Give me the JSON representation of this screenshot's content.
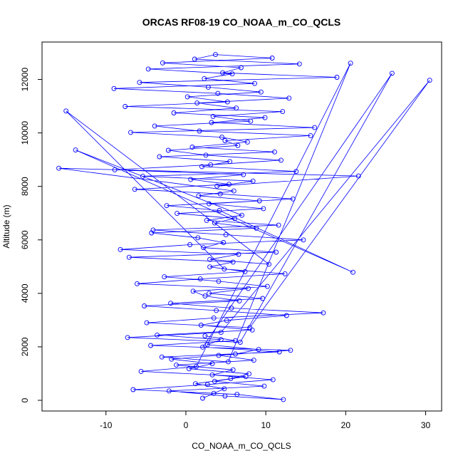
{
  "chart_data": {
    "type": "scatter",
    "title": "ORCAS RF08-19 CO_NOAA_m_CO_QCLS",
    "xlabel": "CO_NOAA_m_CO_QCLS",
    "ylabel": "Altitude (m)",
    "xlim": [
      -18,
      32
    ],
    "ylim": [
      -400,
      13400
    ],
    "xticks": [
      -10,
      0,
      10,
      20,
      30
    ],
    "yticks": [
      0,
      2000,
      4000,
      6000,
      8000,
      10000,
      12000
    ],
    "grid": false,
    "legend": "none",
    "connect_points": true,
    "point_color": "#0000ff",
    "series": [
      {
        "x": [
          2.1,
          3.5,
          4.8,
          1.2,
          5.6,
          7.9,
          0.4,
          3.3,
          -1.8,
          6.2,
          9.1,
          2.7,
          4.4,
          -3.6,
          8.3,
          1.9,
          5.1,
          12.6,
          3.8,
          -5.2,
          6.7,
          2.4,
          0.9,
          10.2,
          4.1,
          -2.7,
          7.4,
          3.0,
          5.9,
          -7.1,
          11.3,
          2.2,
          4.7,
          1.5,
          -4.3,
          8.8,
          3.6,
          6.1,
          -1.1,
          9.7,
          2.9,
          13.4,
          4.3,
          -6.4,
          5.4,
          0.6,
          7.2,
          -8.9,
          3.1,
          11.9,
          2.5,
          -2.2,
          6.5,
          4.9,
          15.6,
          1.7,
          -3.9,
          8.1,
          3.4,
          12.1,
          -7.6,
          5.2,
          0.2,
          9.4,
          2.8,
          -5.8,
          18.9,
          4.6,
          6.9,
          -2.9,
          10.8,
          3.7,
          1.1,
          14.2,
          -4.7,
          5.8,
          2.3,
          8.6,
          -9.0,
          4.0,
          12.9,
          1.4,
          6.3,
          -1.5,
          9.9,
          3.2,
          16.1,
          -6.9,
          4.5,
          7.7,
          0.8,
          11.1,
          -3.3,
          5.5,
          2.0,
          13.8,
          -5.4,
          8.4,
          3.9,
          21.6,
          -15.9,
          6.0,
          1.6,
          9.2,
          -2.4,
          4.2,
          20.9,
          -13.8,
          7.0,
          2.6,
          11.6,
          -4.1,
          5.0,
          14.7,
          0.5,
          -8.2,
          6.6,
          3.0,
          10.4,
          -15.0,
          4.8,
          12.4,
          1.8,
          -6.1,
          7.8,
          2.9,
          9.6,
          -1.9,
          5.7,
          17.2,
          3.5,
          -4.9,
          8.0,
          30.5,
          4.4,
          -7.3,
          6.8,
          25.8,
          2.1,
          11.7,
          -3.0,
          5.3,
          20.6,
          1.3,
          -5.6,
          7.5,
          3.6,
          9.8,
          -2.1,
          4.9,
          12.2,
          6.4,
          -6.6,
          2.7,
          10.9,
          3.3,
          5.9,
          -1.2,
          8.5,
          4.1,
          13.1,
          -4.4,
          6.2,
          2.4
        ],
        "y": [
          80,
          260,
          430,
          620,
          810,
          990,
          1180,
          1370,
          1540,
          1730,
          1900,
          2080,
          2270,
          2440,
          2630,
          2810,
          2990,
          3170,
          3360,
          3530,
          3720,
          3900,
          4080,
          4260,
          4450,
          4620,
          4810,
          4990,
          5170,
          5350,
          5540,
          5710,
          5900,
          6080,
          6260,
          6440,
          6630,
          6800,
          6990,
          7170,
          7350,
          7530,
          7720,
          7890,
          8080,
          8260,
          8440,
          8620,
          8810,
          8980,
          9170,
          9350,
          9530,
          9710,
          9900,
          10070,
          10260,
          10440,
          10620,
          10800,
          10990,
          11160,
          11350,
          11530,
          11710,
          11890,
          12080,
          12250,
          12440,
          12620,
          12800,
          12930,
          12760,
          12580,
          12390,
          12210,
          12030,
          11850,
          11660,
          11480,
          11300,
          11120,
          10930,
          10750,
          10570,
          10390,
          10200,
          10020,
          9840,
          9660,
          9470,
          9290,
          9110,
          8930,
          8740,
          8560,
          8380,
          8200,
          8010,
          8390,
          8680,
          7830,
          7650,
          7460,
          7280,
          7100,
          4790,
          9360,
          6920,
          6730,
          6550,
          6370,
          6190,
          6000,
          5820,
          5640,
          5460,
          5270,
          5090,
          10820,
          4910,
          4730,
          4540,
          4360,
          4180,
          4000,
          3810,
          3630,
          3450,
          3270,
          3080,
          2900,
          2720,
          11970,
          2540,
          2350,
          2170,
          12230,
          1990,
          1810,
          1620,
          1440,
          12610,
          1260,
          1080,
          890,
          710,
          530,
          350,
          160,
          30,
          220,
          400,
          590,
          770,
          950,
          1140,
          1320,
          1500,
          1680,
          1870,
          2050,
          2230,
          2410
        ]
      }
    ]
  }
}
